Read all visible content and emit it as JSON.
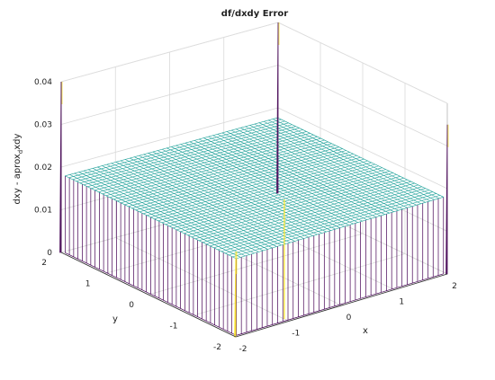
{
  "chart_data": {
    "type": "surface",
    "title": "df/dxdy Error",
    "xlabel": "x",
    "ylabel": "y",
    "zlabel": "dxy - aprox",
    "zlabel_subscript": "d",
    "zlabel_suffix": "xdy",
    "xlim": [
      -2,
      2
    ],
    "ylim": [
      -2,
      2
    ],
    "zlim": [
      0,
      0.04
    ],
    "x_ticks": [
      -2,
      -1,
      0,
      1,
      2
    ],
    "y_ticks": [
      -2,
      -1,
      0,
      1,
      2
    ],
    "z_ticks": [
      0,
      0.01,
      0.02,
      0.03,
      0.04
    ],
    "x_tick_labels": [
      "-2",
      "-1",
      "0",
      "1",
      "2"
    ],
    "y_tick_labels": [
      "-2",
      "-1",
      "0",
      "1",
      "2"
    ],
    "z_tick_labels": [
      "0",
      "0.01",
      "0.02",
      "0.03",
      "0.04"
    ],
    "grid": true,
    "plateau_value": 0.018,
    "boundary_value": 0,
    "spikes": [
      {
        "x": -2,
        "y": 2,
        "z": 0.04
      },
      {
        "x": 2,
        "y": -2,
        "z": 0.035
      },
      {
        "x": 2,
        "y": 2,
        "z": 0.04
      },
      {
        "x": -2,
        "y": -2,
        "z": 0.02
      }
    ],
    "colors": {
      "plateau": "#1fa19a",
      "low": "#440154",
      "high": "#fde725",
      "mid": "#35b779"
    }
  }
}
